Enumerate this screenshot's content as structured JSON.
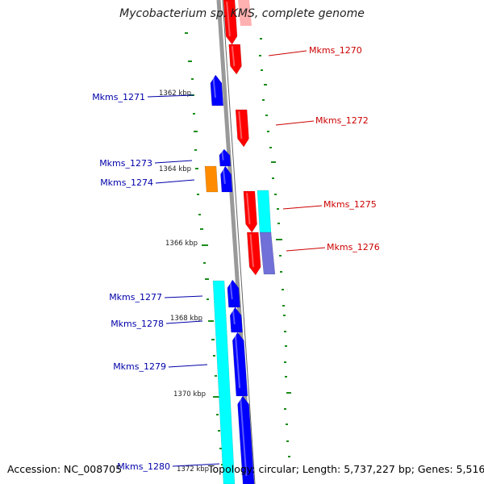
{
  "title": "Mycobacterium sp. KMS, complete genome",
  "footer": {
    "accession": "Accession: NC_008705",
    "details": "Topology: circular; Length: 5,737,227 bp; Genes: 5,516"
  },
  "colors": {
    "forward_gene": "#ff0000",
    "reverse_gene": "#0000ff",
    "orange_gene": "#ff8c00",
    "cyan_feature": "#00ffff",
    "purple_feature": "#7070d8",
    "backbone": "#888888",
    "gc_ticks": "#1a8c1a",
    "forward_label": "#cc0000",
    "reverse_label": "#0000aa"
  },
  "scale_labels": [
    "1362 kbp",
    "1364 kbp",
    "1366 kbp",
    "1368 kbp",
    "1370 kbp",
    "1372 kbp"
  ],
  "genes": [
    {
      "name": "Mkms_1270",
      "strand": "+"
    },
    {
      "name": "Mkms_1271",
      "strand": "-"
    },
    {
      "name": "Mkms_1272",
      "strand": "+"
    },
    {
      "name": "Mkms_1273",
      "strand": "-"
    },
    {
      "name": "Mkms_1274",
      "strand": "-"
    },
    {
      "name": "Mkms_1275",
      "strand": "+"
    },
    {
      "name": "Mkms_1276",
      "strand": "+"
    },
    {
      "name": "Mkms_1277",
      "strand": "-"
    },
    {
      "name": "Mkms_1278",
      "strand": "-"
    },
    {
      "name": "Mkms_1279",
      "strand": "-"
    },
    {
      "name": "Mkms_1280",
      "strand": "-"
    }
  ]
}
